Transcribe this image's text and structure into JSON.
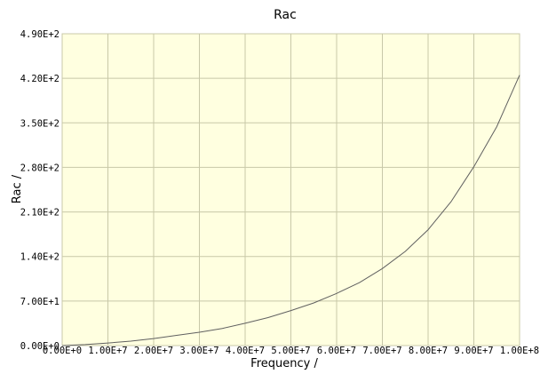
{
  "chart_data": {
    "type": "line",
    "title": "Rac",
    "xlabel": "Frequency /",
    "ylabel": "Rac /",
    "xlim": [
      0,
      100000000
    ],
    "ylim": [
      0,
      490
    ],
    "x_tick_labels": [
      "0.00E+0",
      "1.00E+7",
      "2.00E+7",
      "3.00E+7",
      "4.00E+7",
      "5.00E+7",
      "6.00E+7",
      "7.00E+7",
      "8.00E+7",
      "9.00E+7",
      "1.00E+8"
    ],
    "y_tick_labels": [
      "0.00E+0",
      "7.00E+1",
      "1.40E+2",
      "2.10E+2",
      "2.80E+2",
      "3.50E+2",
      "4.20E+2",
      "4.90E+2"
    ],
    "grid": true,
    "legend": "none",
    "colors": {
      "plot_background": "#ffffe0",
      "grid": "#c8c8a8",
      "line": "#606060"
    },
    "series": [
      {
        "x": [
          0,
          5000000,
          10000000,
          15000000,
          20000000,
          25000000,
          30000000,
          35000000,
          40000000,
          45000000,
          50000000,
          55000000,
          60000000,
          65000000,
          70000000,
          75000000,
          80000000,
          85000000,
          90000000,
          95000000,
          100000000
        ],
        "y": [
          0,
          1.5,
          4,
          7,
          11,
          16,
          21,
          27,
          35,
          44,
          55,
          67,
          82,
          99,
          121,
          148,
          182,
          226,
          281,
          344,
          425
        ]
      }
    ]
  }
}
